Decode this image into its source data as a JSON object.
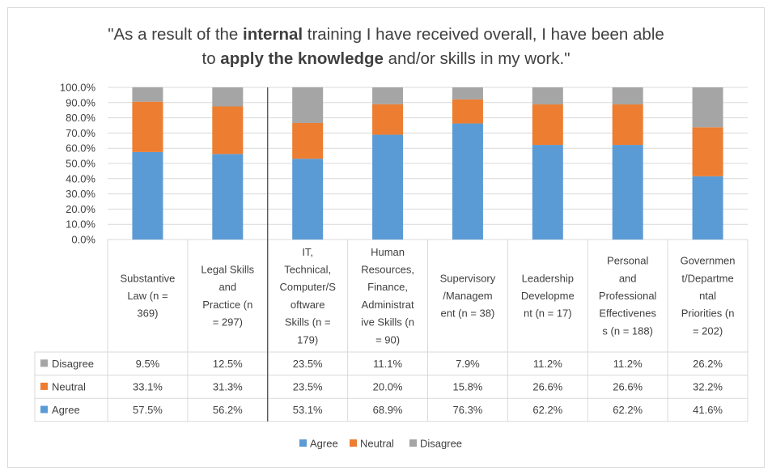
{
  "title": {
    "parts": [
      {
        "text": "\"As a result of the ",
        "bold": false
      },
      {
        "text": "internal",
        "bold": true
      },
      {
        "text": " training I have received overall, I have been able",
        "bold": false
      },
      {
        "text": "\n",
        "bold": false
      },
      {
        "text": "to ",
        "bold": false
      },
      {
        "text": "apply the knowledge",
        "bold": true
      },
      {
        "text": " and/or skills in my work.\"",
        "bold": false
      }
    ]
  },
  "chart_data": {
    "type": "bar",
    "stacked": true,
    "percent_stacked": true,
    "title": "\"As a result of the internal training I have received overall, I have been able to apply the knowledge and/or skills in my work.\"",
    "categories": [
      [
        "Substantive",
        "Law (n =",
        "369)"
      ],
      [
        "Legal Skills",
        "and",
        "Practice (n",
        "= 297)"
      ],
      [
        "IT,",
        "Technical,",
        "Computer/S",
        "oftware",
        "Skills (n =",
        "179)"
      ],
      [
        "Human",
        "Resources,",
        "Finance,",
        "Administrat",
        "ive Skills (n",
        "= 90)"
      ],
      [
        "Supervisory",
        "/Managem",
        "ent (n = 38)"
      ],
      [
        "Leadership",
        "Developme",
        "nt (n = 17)"
      ],
      [
        "Personal",
        "and",
        "Professional",
        "Effectivenes",
        "s (n = 188)"
      ],
      [
        "Governmen",
        "t/Departme",
        "ntal",
        "Priorities (n",
        "= 202)"
      ]
    ],
    "series": [
      {
        "name": "Agree",
        "color": "#5b9bd5",
        "values": [
          57.5,
          56.2,
          53.1,
          68.9,
          76.3,
          62.2,
          62.2,
          41.6
        ],
        "labels": [
          "57.5%",
          "56.2%",
          "53.1%",
          "68.9%",
          "76.3%",
          "62.2%",
          "62.2%",
          "41.6%"
        ]
      },
      {
        "name": "Neutral",
        "color": "#ed7d31",
        "values": [
          33.1,
          31.3,
          23.5,
          20.0,
          15.8,
          26.6,
          26.6,
          32.2
        ],
        "labels": [
          "33.1%",
          "31.3%",
          "23.5%",
          "20.0%",
          "15.8%",
          "26.6%",
          "26.6%",
          "32.2%"
        ]
      },
      {
        "name": "Disagree",
        "color": "#a5a5a5",
        "values": [
          9.5,
          12.5,
          23.5,
          11.1,
          7.9,
          11.2,
          11.2,
          26.2
        ],
        "labels": [
          "9.5%",
          "12.5%",
          "23.5%",
          "11.1%",
          "7.9%",
          "11.2%",
          "11.2%",
          "26.2%"
        ]
      }
    ],
    "yticks": [
      "0.0%",
      "10.0%",
      "20.0%",
      "30.0%",
      "40.0%",
      "50.0%",
      "60.0%",
      "70.0%",
      "80.0%",
      "90.0%",
      "100.0%"
    ],
    "ylim": [
      0,
      100
    ],
    "grid": true,
    "data_table": true,
    "table_row_order": [
      "Disagree",
      "Neutral",
      "Agree"
    ],
    "legend": {
      "position": "bottom",
      "entries": [
        "Agree",
        "Neutral",
        "Disagree"
      ]
    }
  }
}
